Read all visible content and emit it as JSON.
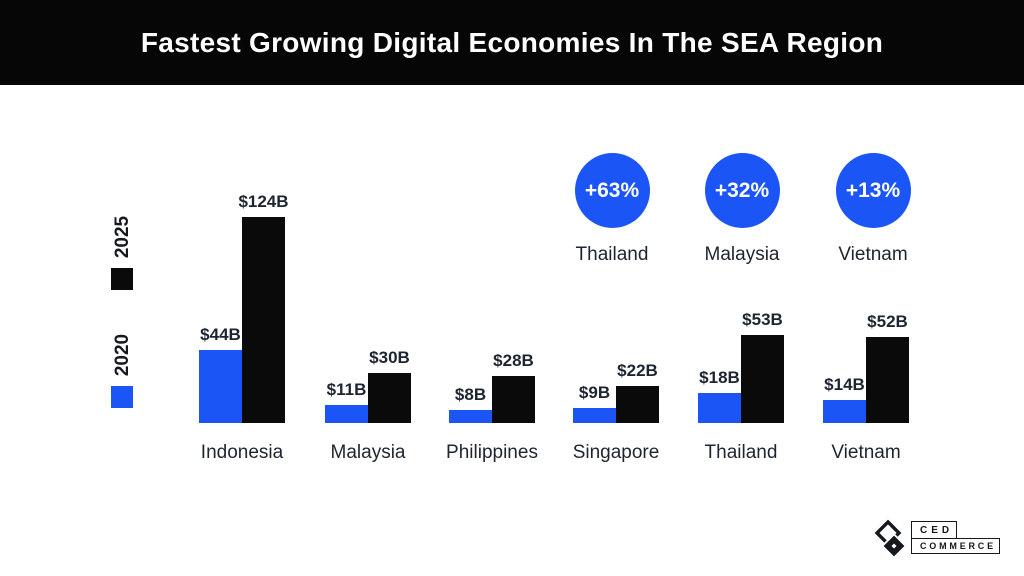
{
  "header": {
    "title": "Fastest Growing Digital Economies In The SEA Region"
  },
  "legend": {
    "items": [
      {
        "label": "2025",
        "color": "#0a0a0a"
      },
      {
        "label": "2020",
        "color": "#1b55f5"
      }
    ]
  },
  "growth_badges": {
    "items": [
      {
        "value": "+63%",
        "country": "Thailand"
      },
      {
        "value": "+32%",
        "country": "Malaysia"
      },
      {
        "value": "+13%",
        "country": "Vietnam"
      }
    ]
  },
  "chart_data": {
    "type": "bar",
    "title": "Fastest Growing Digital Economies In The SEA Region",
    "categories": [
      "Indonesia",
      "Malaysia",
      "Philippines",
      "Singapore",
      "Thailand",
      "Vietnam"
    ],
    "series": [
      {
        "name": "2020",
        "color": "#1b55f5",
        "values": [
          44,
          11,
          8,
          9,
          18,
          14
        ],
        "labels": [
          "$44B",
          "$11B",
          "$8B",
          "$9B",
          "$18B",
          "$14B"
        ]
      },
      {
        "name": "2025",
        "color": "#0a0a0a",
        "values": [
          124,
          30,
          28,
          22,
          53,
          52
        ],
        "labels": [
          "$124B",
          "$30B",
          "$28B",
          "$22B",
          "$53B",
          "$52B"
        ]
      }
    ],
    "unit": "$B",
    "ylim": [
      0,
      130
    ],
    "grid": false,
    "legend_position": "left"
  },
  "logo": {
    "line1": "CED",
    "line2": "COMMERCE"
  },
  "colors": {
    "accent_blue": "#1b55f5",
    "bar_black": "#0a0a0a",
    "text_dark": "#1d2530",
    "header_bg": "#060606",
    "header_text": "#ffffff"
  }
}
